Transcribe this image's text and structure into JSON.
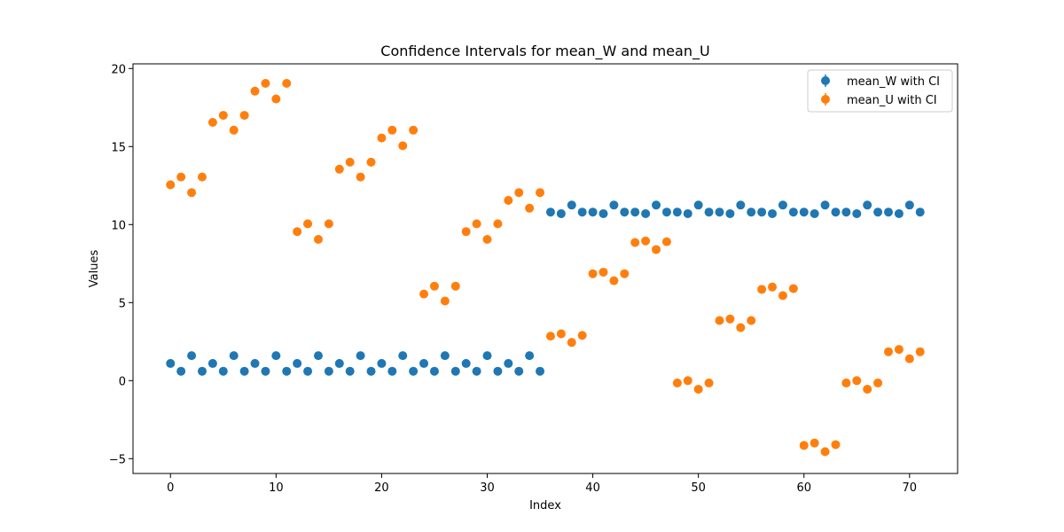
{
  "chart_data": {
    "type": "scatter",
    "title": "Confidence Intervals for mean_W and mean_U",
    "xlabel": "Index",
    "ylabel": "Values",
    "xlim": [
      -3.55,
      74.55
    ],
    "ylim": [
      -5.95,
      20.3
    ],
    "xticks": [
      0,
      10,
      20,
      30,
      40,
      50,
      60,
      70
    ],
    "xtick_labels": [
      "0",
      "10",
      "20",
      "30",
      "40",
      "50",
      "60",
      "70"
    ],
    "yticks": [
      -5,
      0,
      5,
      10,
      15,
      20
    ],
    "ytick_labels": [
      "−5",
      "0",
      "5",
      "10",
      "15",
      "20"
    ],
    "grid": false,
    "legend_position": "top-right",
    "series": [
      {
        "name": "mean_W with CI",
        "color": "#1f77b4",
        "x": [
          0,
          1,
          2,
          3,
          4,
          5,
          6,
          7,
          8,
          9,
          10,
          11,
          12,
          13,
          14,
          15,
          16,
          17,
          18,
          19,
          20,
          21,
          22,
          23,
          24,
          25,
          26,
          27,
          28,
          29,
          30,
          31,
          32,
          33,
          34,
          35,
          36,
          37,
          38,
          39,
          40,
          41,
          42,
          43,
          44,
          45,
          46,
          47,
          48,
          49,
          50,
          51,
          52,
          53,
          54,
          55,
          56,
          57,
          58,
          59,
          60,
          61,
          62,
          63,
          64,
          65,
          66,
          67,
          68,
          69,
          70,
          71
        ],
        "y": [
          1.1,
          0.6,
          1.6,
          0.6,
          1.1,
          0.6,
          1.6,
          0.6,
          1.1,
          0.6,
          1.6,
          0.6,
          1.1,
          0.6,
          1.6,
          0.6,
          1.1,
          0.6,
          1.6,
          0.6,
          1.1,
          0.6,
          1.6,
          0.6,
          1.1,
          0.6,
          1.6,
          0.6,
          1.1,
          0.6,
          1.6,
          0.6,
          1.1,
          0.6,
          1.6,
          0.6,
          10.8,
          10.7,
          11.25,
          10.8,
          10.8,
          10.7,
          11.25,
          10.8,
          10.8,
          10.7,
          11.25,
          10.8,
          10.8,
          10.7,
          11.25,
          10.8,
          10.8,
          10.7,
          11.25,
          10.8,
          10.8,
          10.7,
          11.25,
          10.8,
          10.8,
          10.7,
          11.25,
          10.8,
          10.8,
          10.7,
          11.25,
          10.8,
          10.8,
          10.7,
          11.25,
          10.8
        ]
      },
      {
        "name": "mean_U with CI",
        "color": "#ff7f0e",
        "x": [
          0,
          1,
          2,
          3,
          4,
          5,
          6,
          7,
          8,
          9,
          10,
          11,
          12,
          13,
          14,
          15,
          16,
          17,
          18,
          19,
          20,
          21,
          22,
          23,
          24,
          25,
          26,
          27,
          28,
          29,
          30,
          31,
          32,
          33,
          34,
          35,
          36,
          37,
          38,
          39,
          40,
          41,
          42,
          43,
          44,
          45,
          46,
          47,
          48,
          49,
          50,
          51,
          52,
          53,
          54,
          55,
          56,
          57,
          58,
          59,
          60,
          61,
          62,
          63,
          64,
          65,
          66,
          67,
          68,
          69,
          70,
          71
        ],
        "y": [
          12.55,
          13.05,
          12.05,
          13.05,
          16.55,
          17.0,
          16.05,
          17.0,
          18.55,
          19.05,
          18.05,
          19.05,
          9.55,
          10.05,
          9.05,
          10.05,
          13.55,
          14.0,
          13.05,
          14.0,
          15.55,
          16.05,
          15.05,
          16.05,
          5.55,
          6.05,
          5.1,
          6.05,
          9.55,
          10.05,
          9.05,
          10.05,
          11.55,
          12.05,
          11.05,
          12.05,
          2.85,
          3.0,
          2.45,
          2.9,
          6.85,
          6.95,
          6.4,
          6.85,
          8.85,
          8.95,
          8.4,
          8.9,
          -0.15,
          0.0,
          -0.55,
          -0.15,
          3.85,
          3.95,
          3.4,
          3.85,
          5.85,
          6.0,
          5.45,
          5.9,
          -4.15,
          -4.0,
          -4.55,
          -4.1,
          -0.15,
          0.0,
          -0.55,
          -0.15,
          1.85,
          2.0,
          1.4,
          1.85
        ]
      }
    ]
  }
}
